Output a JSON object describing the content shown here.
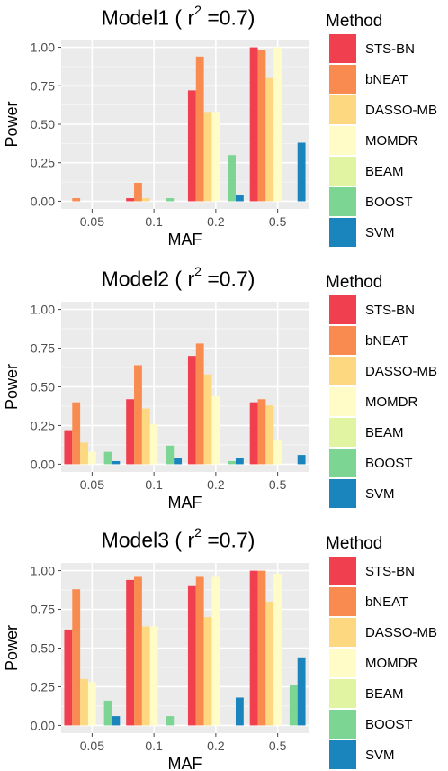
{
  "legend": {
    "title": "Method",
    "items": [
      {
        "label": "STS-BN",
        "color": "#f0404f"
      },
      {
        "label": "bNEAT",
        "color": "#f98b50"
      },
      {
        "label": "DASSO-MB",
        "color": "#fdd880"
      },
      {
        "label": "MOMDR",
        "color": "#fffcc8"
      },
      {
        "label": "BEAM",
        "color": "#e0f4a2"
      },
      {
        "label": "BOOST",
        "color": "#7dd593"
      },
      {
        "label": "SVM",
        "color": "#1a84bc"
      }
    ]
  },
  "chart_data": [
    {
      "type": "bar",
      "title_main": "Model1 ( r",
      "title_sup": "2",
      "title_tail": " =0.7)",
      "xlabel": "MAF",
      "ylabel": "Power",
      "ylim": [
        0,
        1
      ],
      "yticks": [
        "0.00",
        "0.25",
        "0.50",
        "0.75",
        "1.00"
      ],
      "categories": [
        "0.05",
        "0.1",
        "0.2",
        "0.5"
      ],
      "series": [
        {
          "name": "STS-BN",
          "values": [
            0.0,
            0.02,
            0.72,
            1.0
          ]
        },
        {
          "name": "bNEAT",
          "values": [
            0.02,
            0.12,
            0.94,
            0.98
          ]
        },
        {
          "name": "DASSO-MB",
          "values": [
            0.0,
            0.02,
            0.58,
            0.8
          ]
        },
        {
          "name": "MOMDR",
          "values": [
            0.0,
            0.0,
            0.58,
            1.0
          ]
        },
        {
          "name": "BEAM",
          "values": [
            0.0,
            0.0,
            0.0,
            0.0
          ]
        },
        {
          "name": "BOOST",
          "values": [
            0.0,
            0.02,
            0.3,
            0.0
          ]
        },
        {
          "name": "SVM",
          "values": [
            0.0,
            0.0,
            0.04,
            0.38
          ]
        }
      ]
    },
    {
      "type": "bar",
      "title_main": "Model2 ( r",
      "title_sup": "2",
      "title_tail": " =0.7)",
      "xlabel": "MAF",
      "ylabel": "Power",
      "ylim": [
        0,
        1
      ],
      "yticks": [
        "0.00",
        "0.25",
        "0.50",
        "0.75",
        "1.00"
      ],
      "categories": [
        "0.05",
        "0.1",
        "0.2",
        "0.5"
      ],
      "series": [
        {
          "name": "STS-BN",
          "values": [
            0.22,
            0.42,
            0.7,
            0.4
          ]
        },
        {
          "name": "bNEAT",
          "values": [
            0.4,
            0.64,
            0.78,
            0.42
          ]
        },
        {
          "name": "DASSO-MB",
          "values": [
            0.14,
            0.36,
            0.58,
            0.38
          ]
        },
        {
          "name": "MOMDR",
          "values": [
            0.08,
            0.26,
            0.44,
            0.16
          ]
        },
        {
          "name": "BEAM",
          "values": [
            0.0,
            0.0,
            0.0,
            0.0
          ]
        },
        {
          "name": "BOOST",
          "values": [
            0.08,
            0.12,
            0.02,
            0.0
          ]
        },
        {
          "name": "SVM",
          "values": [
            0.02,
            0.04,
            0.04,
            0.06
          ]
        }
      ]
    },
    {
      "type": "bar",
      "title_main": "Model3 ( r",
      "title_sup": "2",
      "title_tail": " =0.7)",
      "xlabel": "MAF",
      "ylabel": "Power",
      "ylim": [
        0,
        1
      ],
      "yticks": [
        "0.00",
        "0.25",
        "0.50",
        "0.75",
        "1.00"
      ],
      "categories": [
        "0.05",
        "0.1",
        "0.2",
        "0.5"
      ],
      "series": [
        {
          "name": "STS-BN",
          "values": [
            0.62,
            0.94,
            0.9,
            1.0
          ]
        },
        {
          "name": "bNEAT",
          "values": [
            0.88,
            0.96,
            0.96,
            1.0
          ]
        },
        {
          "name": "DASSO-MB",
          "values": [
            0.3,
            0.64,
            0.7,
            0.8
          ]
        },
        {
          "name": "MOMDR",
          "values": [
            0.28,
            0.64,
            0.96,
            0.98
          ]
        },
        {
          "name": "BEAM",
          "values": [
            0.0,
            0.0,
            0.0,
            0.0
          ]
        },
        {
          "name": "BOOST",
          "values": [
            0.16,
            0.06,
            0.0,
            0.26
          ]
        },
        {
          "name": "SVM",
          "values": [
            0.06,
            0.0,
            0.18,
            0.44
          ]
        }
      ]
    }
  ]
}
